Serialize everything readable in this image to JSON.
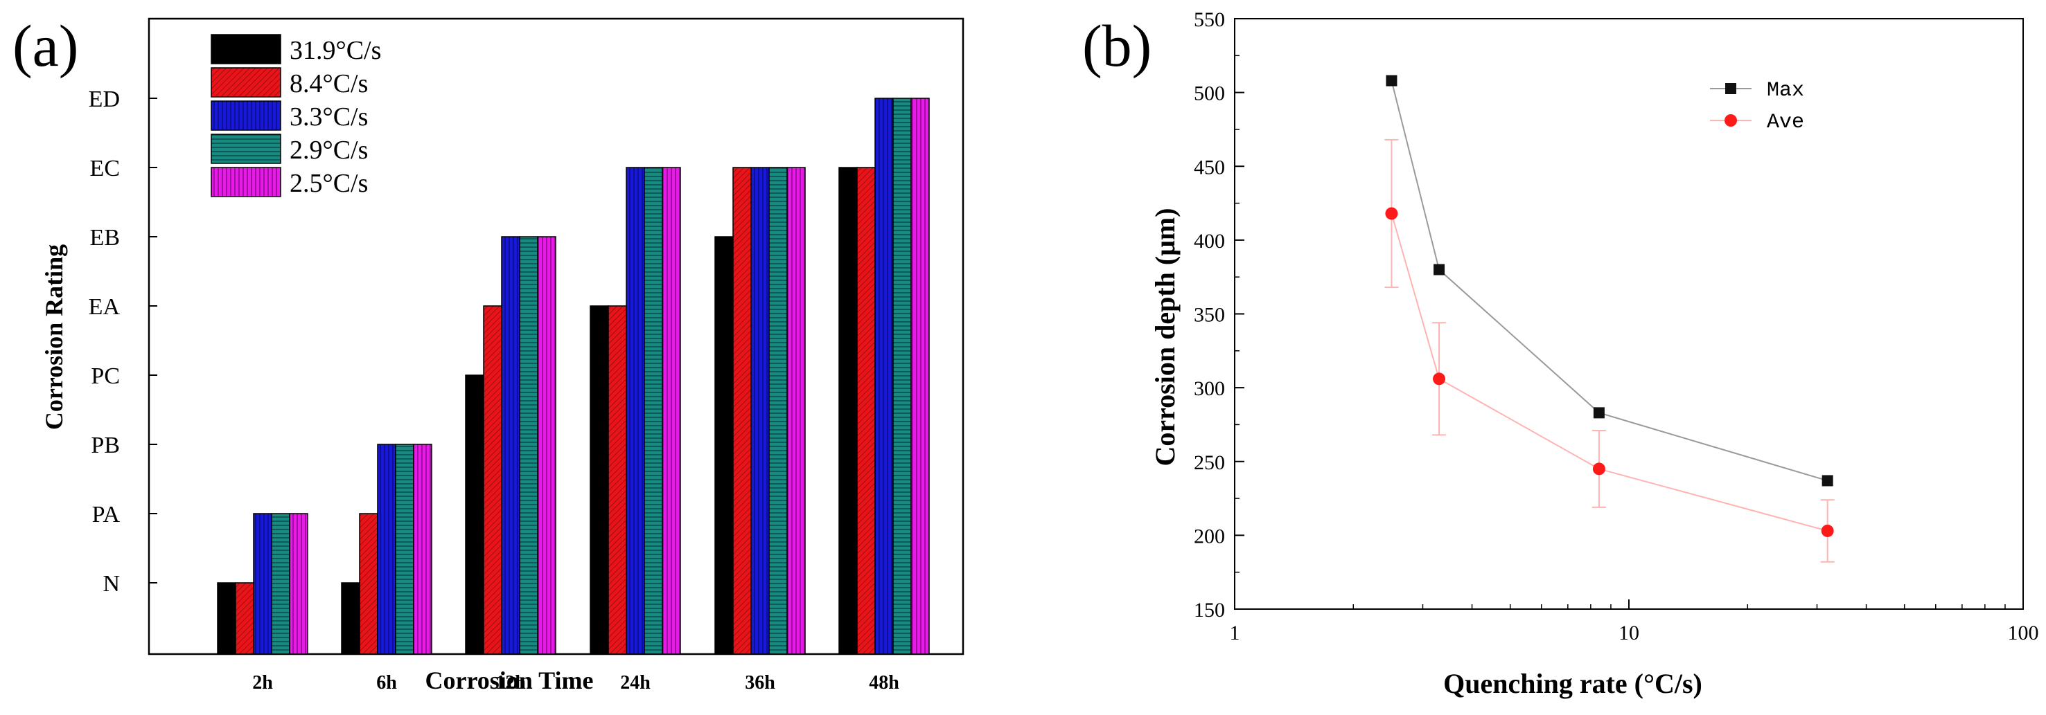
{
  "chart_data": [
    {
      "panel_label": "(a)",
      "type": "bar",
      "xlabel": "Corrosion Time",
      "ylabel": "Corrosion Rating",
      "categories": [
        "2h",
        "6h",
        "12h",
        "24h",
        "36h",
        "48h"
      ],
      "rating_levels": [
        "N",
        "PA",
        "PB",
        "PC",
        "EA",
        "EB",
        "EC",
        "ED"
      ],
      "legend_position": "top-left",
      "series": [
        {
          "name": "31.9°C/s",
          "color": "#000000",
          "values": [
            0,
            0,
            3,
            4,
            5,
            6
          ]
        },
        {
          "name": "8.4°C/s",
          "color": "#e8141a",
          "values": [
            0,
            1,
            4,
            4,
            6,
            6
          ]
        },
        {
          "name": "3.3°C/s",
          "color": "#1818d8",
          "values": [
            1,
            2,
            5,
            6,
            6,
            7
          ]
        },
        {
          "name": "2.9°C/s",
          "color": "#178a82",
          "values": [
            1,
            2,
            5,
            6,
            6,
            7
          ]
        },
        {
          "name": "2.5°C/s",
          "color": "#e81ae8",
          "values": [
            1,
            2,
            5,
            6,
            6,
            7
          ]
        }
      ]
    },
    {
      "panel_label": "(b)",
      "type": "line",
      "xlabel": "Quenching rate (°C/s)",
      "ylabel": "Corrosion depth (μm)",
      "xscale": "log",
      "xlim": [
        1,
        100
      ],
      "ylim": [
        150,
        550
      ],
      "xticks": [
        1,
        10,
        100
      ],
      "yticks": [
        150,
        200,
        250,
        300,
        350,
        400,
        450,
        500,
        550
      ],
      "legend_position": "top-right",
      "series": [
        {
          "name": "Max",
          "color": "#111111",
          "line_color": "#9a9a9a",
          "marker": "square",
          "x": [
            2.5,
            3.3,
            8.4,
            31.9
          ],
          "y": [
            508,
            380,
            283,
            237
          ]
        },
        {
          "name": "Ave",
          "color": "#ff1a1a",
          "line_color": "#ffb3b3",
          "marker": "circle",
          "x": [
            2.5,
            3.3,
            8.4,
            31.9
          ],
          "y": [
            418,
            306,
            245,
            203
          ],
          "yerr": [
            50,
            38,
            26,
            21
          ]
        }
      ]
    }
  ]
}
